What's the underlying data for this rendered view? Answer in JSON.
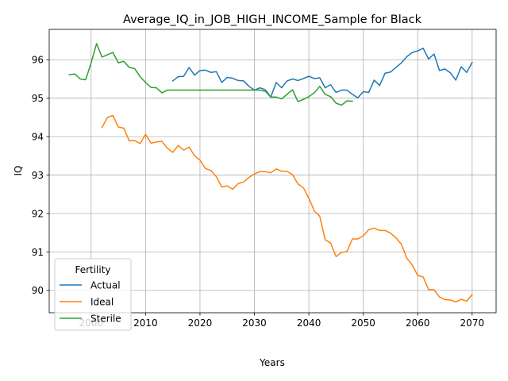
{
  "chart_data": {
    "type": "line",
    "title": "Average_IQ_in_JOB_HIGH_INCOME_Sample for Black",
    "xlabel": "Years",
    "ylabel": "IQ",
    "xlim": [
      1992.3,
      2074.4
    ],
    "ylim": [
      89.42,
      96.79
    ],
    "xticks": [
      2000,
      2010,
      2020,
      2030,
      2040,
      2050,
      2060,
      2070
    ],
    "yticks": [
      90,
      91,
      92,
      93,
      94,
      95,
      96
    ],
    "grid": true,
    "legend": {
      "title": "Fertility",
      "placement": "lower-left"
    },
    "series": [
      {
        "name": "Actual",
        "color": "#1f77b4",
        "x": [
          2015,
          2016,
          2017,
          2018,
          2019,
          2020,
          2021,
          2022,
          2023,
          2024,
          2025,
          2026,
          2027,
          2028,
          2029,
          2030,
          2031,
          2032,
          2033,
          2034,
          2035,
          2036,
          2037,
          2038,
          2039,
          2040,
          2041,
          2042,
          2043,
          2044,
          2045,
          2046,
          2047,
          2048,
          2049,
          2050,
          2051,
          2052,
          2053,
          2054,
          2055,
          2056,
          2057,
          2058,
          2059,
          2060,
          2061,
          2062,
          2063,
          2064,
          2065,
          2066,
          2067,
          2068,
          2069,
          2070
        ],
        "values": [
          95.45,
          95.56,
          95.57,
          95.8,
          95.6,
          95.72,
          95.73,
          95.67,
          95.69,
          95.41,
          95.54,
          95.52,
          95.46,
          95.45,
          95.31,
          95.21,
          95.27,
          95.22,
          95.03,
          95.41,
          95.27,
          95.45,
          95.5,
          95.46,
          95.51,
          95.57,
          95.51,
          95.53,
          95.27,
          95.35,
          95.15,
          95.21,
          95.21,
          95.1,
          95.01,
          95.17,
          95.15,
          95.47,
          95.33,
          95.65,
          95.68,
          95.8,
          95.92,
          96.08,
          96.19,
          96.23,
          96.3,
          96.02,
          96.15,
          95.72,
          95.76,
          95.66,
          95.47,
          95.82,
          95.67,
          95.93
        ]
      },
      {
        "name": "Ideal",
        "color": "#ff7f0e",
        "x": [
          2002,
          2003,
          2004,
          2005,
          2006,
          2007,
          2008,
          2009,
          2010,
          2011,
          2012,
          2013,
          2014,
          2015,
          2016,
          2017,
          2018,
          2019,
          2020,
          2021,
          2022,
          2023,
          2024,
          2025,
          2026,
          2027,
          2028,
          2029,
          2030,
          2031,
          2032,
          2033,
          2034,
          2035,
          2036,
          2037,
          2038,
          2039,
          2040,
          2041,
          2042,
          2043,
          2044,
          2045,
          2046,
          2047,
          2048,
          2049,
          2050,
          2051,
          2052,
          2053,
          2054,
          2055,
          2056,
          2057,
          2058,
          2059,
          2060,
          2061,
          2062,
          2063,
          2064,
          2065,
          2066,
          2067,
          2068,
          2069,
          2070
        ],
        "values": [
          94.24,
          94.5,
          94.55,
          94.25,
          94.22,
          93.89,
          93.9,
          93.82,
          94.06,
          93.83,
          93.86,
          93.88,
          93.7,
          93.59,
          93.77,
          93.65,
          93.73,
          93.5,
          93.39,
          93.17,
          93.12,
          92.96,
          92.69,
          92.72,
          92.63,
          92.78,
          92.82,
          92.94,
          93.03,
          93.09,
          93.09,
          93.06,
          93.16,
          93.1,
          93.1,
          93.01,
          92.77,
          92.67,
          92.4,
          92.07,
          91.93,
          91.32,
          91.23,
          90.88,
          90.99,
          91.01,
          91.34,
          91.34,
          91.42,
          91.58,
          91.62,
          91.56,
          91.56,
          91.49,
          91.37,
          91.2,
          90.84,
          90.66,
          90.39,
          90.35,
          90.02,
          90.02,
          89.83,
          89.76,
          89.75,
          89.7,
          89.77,
          89.72,
          89.89
        ]
      },
      {
        "name": "Sterile",
        "color": "#2ca02c",
        "x": [
          1996,
          1997,
          1998,
          1999,
          2000,
          2001,
          2002,
          2003,
          2004,
          2005,
          2006,
          2007,
          2008,
          2009,
          2010,
          2011,
          2012,
          2013,
          2014,
          2015,
          2016,
          2017,
          2018,
          2019,
          2020,
          2021,
          2022,
          2023,
          2024,
          2025,
          2026,
          2027,
          2028,
          2029,
          2030,
          2031,
          2032,
          2033,
          2034,
          2035,
          2036,
          2037,
          2038,
          2039,
          2040,
          2041,
          2042,
          2043,
          2044,
          2045,
          2046,
          2047,
          2048
        ],
        "values": [
          95.61,
          95.63,
          95.5,
          95.48,
          95.92,
          96.42,
          96.07,
          96.13,
          96.19,
          95.92,
          95.96,
          95.8,
          95.77,
          95.56,
          95.41,
          95.28,
          95.27,
          95.14,
          95.21,
          95.21,
          95.21,
          95.21,
          95.21,
          95.21,
          95.21,
          95.21,
          95.21,
          95.21,
          95.21,
          95.21,
          95.21,
          95.21,
          95.21,
          95.21,
          95.21,
          95.21,
          95.18,
          95.03,
          95.03,
          94.98,
          95.1,
          95.22,
          94.91,
          94.97,
          95.04,
          95.14,
          95.31,
          95.1,
          95.04,
          94.87,
          94.82,
          94.93,
          94.92
        ]
      }
    ]
  }
}
